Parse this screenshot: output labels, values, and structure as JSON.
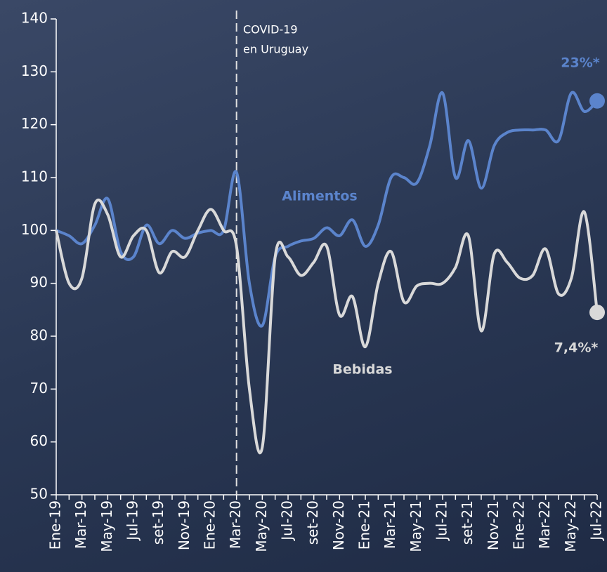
{
  "chart_data": {
    "type": "line",
    "categories": [
      "Ene-19",
      null,
      "Mar-19",
      null,
      "May-19",
      null,
      "Jul-19",
      null,
      "set-19",
      null,
      "Nov-19",
      null,
      "Ene-20",
      null,
      "Mar-20",
      null,
      "May-20",
      null,
      "Jul-20",
      null,
      "set-20",
      null,
      "Nov-20",
      null,
      "Ene-21",
      null,
      "Mar-21",
      null,
      "May-21",
      null,
      "Jul-21",
      null,
      "set-21",
      null,
      "Nov-21",
      null,
      "Ene-22",
      null,
      "Mar-22",
      null,
      "May-22",
      null,
      "Jul-22"
    ],
    "series": [
      {
        "name": "Alimentos",
        "color": "#5b84cc",
        "end_label": "23%*",
        "values": [
          100,
          99,
          97.5,
          101,
          106,
          96,
          95,
          101,
          97.5,
          100,
          98.5,
          99.5,
          100,
          100,
          111,
          90,
          82,
          95,
          97,
          98,
          98.5,
          100.5,
          99,
          102,
          97,
          101,
          110,
          110,
          109,
          116,
          126,
          110,
          117,
          108,
          116,
          118.5,
          119,
          119,
          119,
          117,
          126,
          122.5,
          124.5
        ]
      },
      {
        "name": "Bebidas",
        "color": "#d9d9d9",
        "end_label": "7,4%*",
        "values": [
          100,
          90,
          91,
          105,
          103,
          95,
          99,
          100,
          92,
          96,
          95,
          100,
          104,
          100,
          97,
          70,
          59,
          95,
          95,
          91.5,
          94,
          97,
          84,
          87.5,
          78,
          90,
          96,
          86.5,
          89.5,
          90,
          90,
          93,
          99,
          81,
          95.5,
          94,
          91,
          91.5,
          96.5,
          88,
          91,
          103.5,
          84.5
        ]
      }
    ],
    "annotation": [
      "COVID-19",
      "en Uruguay"
    ],
    "ylim": [
      50,
      140
    ],
    "yticks": [
      50,
      60,
      70,
      80,
      90,
      100,
      110,
      120,
      130,
      140
    ]
  }
}
